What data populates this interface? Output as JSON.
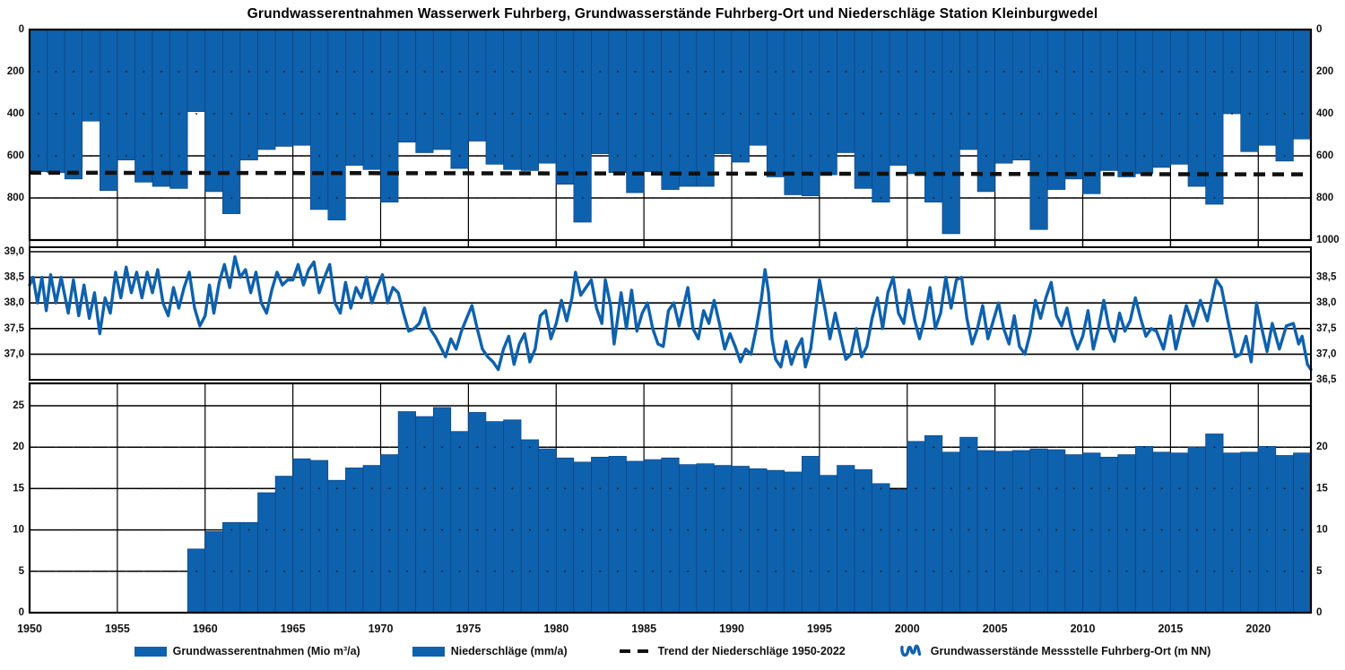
{
  "title": "Grundwasserentnahmen Wasserwerk Fuhrberg,  Grundwasserstände Fuhrberg-Ort  und  Niederschläge Station Kleinburgwedel",
  "colors": {
    "series_blue": "#0e61ad",
    "bar_edge": "#0a3f7d",
    "grid_black": "#000000",
    "trend_black": "#111111",
    "text": "#111111",
    "background": "#ffffff"
  },
  "legend": [
    {
      "label": "Grundwasserentnahmen (Mio m³/a)",
      "swatch": "bar"
    },
    {
      "label": "Niederschläge (mm/a)",
      "swatch": "bar"
    },
    {
      "label": "Trend der Niederschläge 1950-2022",
      "swatch": "dashed-line"
    },
    {
      "label": "Grundwasserstände Messstelle Fuhrberg-Ort (m NN)",
      "swatch": "line-squiggle"
    }
  ],
  "x_axis": {
    "min_year": 1950,
    "max_year": 2023,
    "tick_years": [
      1950,
      1955,
      1960,
      1965,
      1970,
      1975,
      1980,
      1985,
      1990,
      1995,
      2000,
      2005,
      2010,
      2015,
      2020
    ]
  },
  "chart_data": [
    {
      "type": "bar",
      "name": "Niederschläge Station Kleinburgwedel",
      "unit": "mm/a",
      "orientation": "inverted-from-top",
      "year_start": 1950,
      "values": [
        675,
        680,
        710,
        435,
        765,
        620,
        725,
        745,
        755,
        390,
        770,
        875,
        620,
        570,
        555,
        550,
        855,
        905,
        645,
        665,
        820,
        535,
        585,
        570,
        660,
        530,
        640,
        665,
        670,
        635,
        735,
        915,
        590,
        680,
        775,
        675,
        760,
        745,
        745,
        590,
        630,
        550,
        700,
        785,
        790,
        690,
        585,
        755,
        820,
        645,
        685,
        820,
        970,
        570,
        770,
        635,
        620,
        950,
        760,
        710,
        780,
        670,
        700,
        685,
        655,
        640,
        745,
        830,
        400,
        580,
        550,
        625,
        520
      ],
      "ylim": [
        0,
        1000
      ],
      "yticks_left": [
        {
          "v": 0,
          "label": "0"
        },
        {
          "v": 200,
          "label": "200"
        },
        {
          "v": 400,
          "label": "400"
        },
        {
          "v": 600,
          "label": "600"
        },
        {
          "v": 800,
          "label": "800"
        }
      ],
      "yticks_right": [
        {
          "v": 0,
          "label": "0"
        },
        {
          "v": 200,
          "label": "200"
        },
        {
          "v": 400,
          "label": "400"
        },
        {
          "v": 600,
          "label": "600"
        },
        {
          "v": 800,
          "label": "800"
        },
        {
          "v": 1000,
          "label": "1000"
        }
      ],
      "bold_gridline_values": [
        600,
        800
      ],
      "dotted_gridline_values": [
        200,
        400,
        600,
        800
      ],
      "trend": {
        "label": "Trend der Niederschläge 1950-2022",
        "value_start": 680,
        "value_end": 688
      }
    },
    {
      "type": "line",
      "name": "Grundwasserstände Messstelle Fuhrberg-Ort",
      "unit": "m NN",
      "ylim": [
        36.5,
        39.0
      ],
      "yticks_left": [
        {
          "v": 39.0,
          "label": "39,0"
        },
        {
          "v": 38.5,
          "label": "38,5"
        },
        {
          "v": 38.0,
          "label": "38,0"
        },
        {
          "v": 37.5,
          "label": "37,5"
        },
        {
          "v": 37.0,
          "label": "37,0"
        }
      ],
      "yticks_right": [
        {
          "v": 38.5,
          "label": "38,5"
        },
        {
          "v": 38.0,
          "label": "38,0"
        },
        {
          "v": 37.5,
          "label": "37,5"
        },
        {
          "v": 37.0,
          "label": "37,0"
        },
        {
          "v": 36.5,
          "label": "36,5"
        }
      ],
      "gridline_values": [
        39.0,
        38.5,
        38.0,
        37.5,
        37.0
      ],
      "points": [
        [
          1950.0,
          38.35
        ],
        [
          1950.2,
          38.5
        ],
        [
          1950.45,
          38.0
        ],
        [
          1950.7,
          38.5
        ],
        [
          1950.95,
          37.85
        ],
        [
          1951.2,
          38.55
        ],
        [
          1951.5,
          38.0
        ],
        [
          1951.8,
          38.5
        ],
        [
          1952.2,
          37.8
        ],
        [
          1952.5,
          38.45
        ],
        [
          1952.8,
          37.75
        ],
        [
          1953.1,
          38.35
        ],
        [
          1953.4,
          37.7
        ],
        [
          1953.7,
          38.2
        ],
        [
          1954.0,
          37.4
        ],
        [
          1954.3,
          38.1
        ],
        [
          1954.6,
          37.8
        ],
        [
          1954.9,
          38.6
        ],
        [
          1955.2,
          38.1
        ],
        [
          1955.5,
          38.7
        ],
        [
          1955.8,
          38.2
        ],
        [
          1956.1,
          38.6
        ],
        [
          1956.4,
          38.1
        ],
        [
          1956.7,
          38.6
        ],
        [
          1957.0,
          38.2
        ],
        [
          1957.3,
          38.65
        ],
        [
          1957.6,
          38.0
        ],
        [
          1957.9,
          37.75
        ],
        [
          1958.2,
          38.3
        ],
        [
          1958.5,
          37.9
        ],
        [
          1958.8,
          38.3
        ],
        [
          1959.1,
          38.6
        ],
        [
          1959.4,
          37.9
        ],
        [
          1959.7,
          37.55
        ],
        [
          1960.0,
          37.75
        ],
        [
          1960.25,
          38.35
        ],
        [
          1960.5,
          37.8
        ],
        [
          1960.8,
          38.4
        ],
        [
          1961.1,
          38.75
        ],
        [
          1961.4,
          38.3
        ],
        [
          1961.7,
          38.9
        ],
        [
          1962.0,
          38.5
        ],
        [
          1962.3,
          38.65
        ],
        [
          1962.6,
          38.2
        ],
        [
          1962.9,
          38.6
        ],
        [
          1963.2,
          38.0
        ],
        [
          1963.5,
          37.8
        ],
        [
          1963.8,
          38.25
        ],
        [
          1964.1,
          38.6
        ],
        [
          1964.4,
          38.35
        ],
        [
          1964.7,
          38.45
        ],
        [
          1965.0,
          38.45
        ],
        [
          1965.3,
          38.75
        ],
        [
          1965.6,
          38.35
        ],
        [
          1965.9,
          38.65
        ],
        [
          1966.2,
          38.8
        ],
        [
          1966.5,
          38.2
        ],
        [
          1966.8,
          38.5
        ],
        [
          1967.1,
          38.75
        ],
        [
          1967.4,
          38.0
        ],
        [
          1967.7,
          37.8
        ],
        [
          1968.0,
          38.4
        ],
        [
          1968.3,
          37.9
        ],
        [
          1968.6,
          38.3
        ],
        [
          1968.9,
          38.1
        ],
        [
          1969.2,
          38.5
        ],
        [
          1969.5,
          38.0
        ],
        [
          1969.8,
          38.3
        ],
        [
          1970.1,
          38.55
        ],
        [
          1970.4,
          38.0
        ],
        [
          1970.7,
          38.3
        ],
        [
          1971.0,
          38.2
        ],
        [
          1971.3,
          37.8
        ],
        [
          1971.6,
          37.45
        ],
        [
          1971.9,
          37.5
        ],
        [
          1972.2,
          37.6
        ],
        [
          1972.5,
          37.9
        ],
        [
          1972.8,
          37.5
        ],
        [
          1973.1,
          37.35
        ],
        [
          1973.4,
          37.15
        ],
        [
          1973.7,
          36.95
        ],
        [
          1974.0,
          37.3
        ],
        [
          1974.3,
          37.1
        ],
        [
          1974.6,
          37.45
        ],
        [
          1974.9,
          37.7
        ],
        [
          1975.2,
          37.95
        ],
        [
          1975.5,
          37.5
        ],
        [
          1975.8,
          37.1
        ],
        [
          1976.1,
          36.95
        ],
        [
          1976.4,
          36.85
        ],
        [
          1976.7,
          36.7
        ],
        [
          1977.0,
          37.1
        ],
        [
          1977.3,
          37.35
        ],
        [
          1977.6,
          36.8
        ],
        [
          1977.9,
          37.2
        ],
        [
          1978.2,
          37.4
        ],
        [
          1978.5,
          36.85
        ],
        [
          1978.8,
          37.1
        ],
        [
          1979.1,
          37.75
        ],
        [
          1979.4,
          37.85
        ],
        [
          1979.7,
          37.3
        ],
        [
          1980.0,
          37.6
        ],
        [
          1980.3,
          38.05
        ],
        [
          1980.6,
          37.65
        ],
        [
          1980.9,
          38.1
        ],
        [
          1981.1,
          38.6
        ],
        [
          1981.4,
          38.15
        ],
        [
          1981.7,
          38.3
        ],
        [
          1982.0,
          38.45
        ],
        [
          1982.3,
          37.9
        ],
        [
          1982.6,
          37.6
        ],
        [
          1982.8,
          38.45
        ],
        [
          1983.1,
          37.95
        ],
        [
          1983.3,
          37.2
        ],
        [
          1983.7,
          38.2
        ],
        [
          1984.0,
          37.5
        ],
        [
          1984.3,
          38.25
        ],
        [
          1984.6,
          37.45
        ],
        [
          1984.9,
          37.8
        ],
        [
          1985.2,
          38.0
        ],
        [
          1985.5,
          37.5
        ],
        [
          1985.8,
          37.2
        ],
        [
          1986.1,
          37.15
        ],
        [
          1986.4,
          37.85
        ],
        [
          1986.7,
          38.0
        ],
        [
          1987.0,
          37.55
        ],
        [
          1987.3,
          38.0
        ],
        [
          1987.5,
          38.3
        ],
        [
          1987.8,
          37.5
        ],
        [
          1988.1,
          37.3
        ],
        [
          1988.4,
          37.85
        ],
        [
          1988.7,
          37.6
        ],
        [
          1989.0,
          38.05
        ],
        [
          1989.3,
          37.6
        ],
        [
          1989.6,
          37.1
        ],
        [
          1989.9,
          37.4
        ],
        [
          1990.2,
          37.15
        ],
        [
          1990.5,
          36.85
        ],
        [
          1990.8,
          37.1
        ],
        [
          1991.1,
          37.0
        ],
        [
          1991.4,
          37.5
        ],
        [
          1991.7,
          38.1
        ],
        [
          1991.9,
          38.65
        ],
        [
          1992.1,
          38.2
        ],
        [
          1992.3,
          37.3
        ],
        [
          1992.5,
          36.9
        ],
        [
          1992.8,
          36.75
        ],
        [
          1993.1,
          37.25
        ],
        [
          1993.4,
          36.8
        ],
        [
          1993.7,
          37.1
        ],
        [
          1994.0,
          37.3
        ],
        [
          1994.2,
          36.75
        ],
        [
          1994.5,
          37.1
        ],
        [
          1994.8,
          37.9
        ],
        [
          1995.0,
          38.45
        ],
        [
          1995.3,
          37.9
        ],
        [
          1995.6,
          37.3
        ],
        [
          1995.9,
          37.8
        ],
        [
          1996.2,
          37.35
        ],
        [
          1996.5,
          36.9
        ],
        [
          1996.8,
          37.0
        ],
        [
          1997.1,
          37.5
        ],
        [
          1997.4,
          36.95
        ],
        [
          1997.7,
          37.15
        ],
        [
          1998.0,
          37.7
        ],
        [
          1998.3,
          38.1
        ],
        [
          1998.6,
          37.5
        ],
        [
          1998.9,
          38.2
        ],
        [
          1999.2,
          38.5
        ],
        [
          1999.5,
          37.8
        ],
        [
          1999.8,
          37.6
        ],
        [
          2000.1,
          38.25
        ],
        [
          2000.4,
          37.7
        ],
        [
          2000.7,
          37.3
        ],
        [
          2001.0,
          37.7
        ],
        [
          2001.3,
          38.3
        ],
        [
          2001.6,
          37.5
        ],
        [
          2001.9,
          37.8
        ],
        [
          2002.2,
          38.5
        ],
        [
          2002.5,
          37.9
        ],
        [
          2002.8,
          38.45
        ],
        [
          2003.1,
          38.5
        ],
        [
          2003.4,
          37.7
        ],
        [
          2003.7,
          37.2
        ],
        [
          2004.0,
          37.5
        ],
        [
          2004.3,
          37.95
        ],
        [
          2004.6,
          37.3
        ],
        [
          2004.9,
          37.65
        ],
        [
          2005.2,
          38.0
        ],
        [
          2005.5,
          37.5
        ],
        [
          2005.8,
          37.2
        ],
        [
          2006.1,
          37.75
        ],
        [
          2006.4,
          37.15
        ],
        [
          2006.7,
          37.0
        ],
        [
          2007.0,
          37.4
        ],
        [
          2007.3,
          38.05
        ],
        [
          2007.6,
          37.7
        ],
        [
          2007.9,
          38.1
        ],
        [
          2008.2,
          38.4
        ],
        [
          2008.5,
          37.75
        ],
        [
          2008.8,
          37.55
        ],
        [
          2009.1,
          37.9
        ],
        [
          2009.4,
          37.4
        ],
        [
          2009.7,
          37.1
        ],
        [
          2010.0,
          37.35
        ],
        [
          2010.3,
          37.85
        ],
        [
          2010.6,
          37.1
        ],
        [
          2010.9,
          37.5
        ],
        [
          2011.2,
          38.05
        ],
        [
          2011.5,
          37.5
        ],
        [
          2011.8,
          37.25
        ],
        [
          2012.1,
          37.8
        ],
        [
          2012.4,
          37.45
        ],
        [
          2012.7,
          37.65
        ],
        [
          2013.0,
          38.1
        ],
        [
          2013.3,
          37.7
        ],
        [
          2013.6,
          37.35
        ],
        [
          2013.9,
          37.5
        ],
        [
          2014.2,
          37.45
        ],
        [
          2014.6,
          37.1
        ],
        [
          2015.0,
          37.75
        ],
        [
          2015.3,
          37.1
        ],
        [
          2015.9,
          37.95
        ],
        [
          2016.3,
          37.55
        ],
        [
          2016.7,
          38.05
        ],
        [
          2017.1,
          37.65
        ],
        [
          2017.6,
          38.45
        ],
        [
          2017.9,
          38.3
        ],
        [
          2018.3,
          37.6
        ],
        [
          2018.7,
          36.95
        ],
        [
          2019.0,
          37.0
        ],
        [
          2019.3,
          37.35
        ],
        [
          2019.6,
          36.85
        ],
        [
          2019.9,
          38.0
        ],
        [
          2020.2,
          37.5
        ],
        [
          2020.5,
          37.05
        ],
        [
          2020.8,
          37.6
        ],
        [
          2021.2,
          37.1
        ],
        [
          2021.6,
          37.55
        ],
        [
          2022.0,
          37.6
        ],
        [
          2022.3,
          37.2
        ],
        [
          2022.5,
          37.35
        ],
        [
          2022.8,
          36.8
        ],
        [
          2023.0,
          36.7
        ]
      ]
    },
    {
      "type": "bar",
      "name": "Grundwasserentnahmen Wasserwerk Fuhrberg",
      "unit": "Mio m³/a",
      "year_start": 1959,
      "values": [
        7.7,
        9.8,
        10.9,
        10.9,
        14.5,
        16.5,
        18.6,
        18.4,
        16.0,
        17.5,
        17.8,
        19.1,
        24.3,
        23.7,
        24.8,
        21.9,
        24.2,
        23.1,
        23.3,
        20.9,
        19.8,
        18.7,
        18.2,
        18.8,
        18.9,
        18.3,
        18.5,
        18.7,
        17.9,
        18.0,
        17.8,
        17.7,
        17.4,
        17.2,
        17.0,
        18.9,
        16.6,
        17.8,
        17.3,
        15.6,
        14.9,
        20.7,
        21.4,
        19.4,
        21.2,
        19.6,
        19.5,
        19.6,
        19.8,
        19.7,
        19.1,
        19.3,
        18.8,
        19.1,
        20.1,
        19.4,
        19.3,
        20.0,
        21.6,
        19.3,
        19.4,
        20.1,
        19.0,
        19.3
      ],
      "ylim": [
        0,
        25
      ],
      "yticks_left": [
        {
          "v": 25,
          "label": "25"
        },
        {
          "v": 20,
          "label": "20"
        },
        {
          "v": 15,
          "label": "15"
        },
        {
          "v": 10,
          "label": "10"
        },
        {
          "v": 5,
          "label": "5"
        },
        {
          "v": 0,
          "label": "0"
        }
      ],
      "yticks_right": [
        {
          "v": 20,
          "label": "20"
        },
        {
          "v": 15,
          "label": "15"
        },
        {
          "v": 10,
          "label": "10"
        },
        {
          "v": 5,
          "label": "5"
        },
        {
          "v": 0,
          "label": "0"
        }
      ],
      "gridline_values": [
        25,
        20,
        15,
        10,
        5
      ],
      "dotted_gridline_values": [
        20,
        15,
        10,
        5
      ]
    }
  ]
}
